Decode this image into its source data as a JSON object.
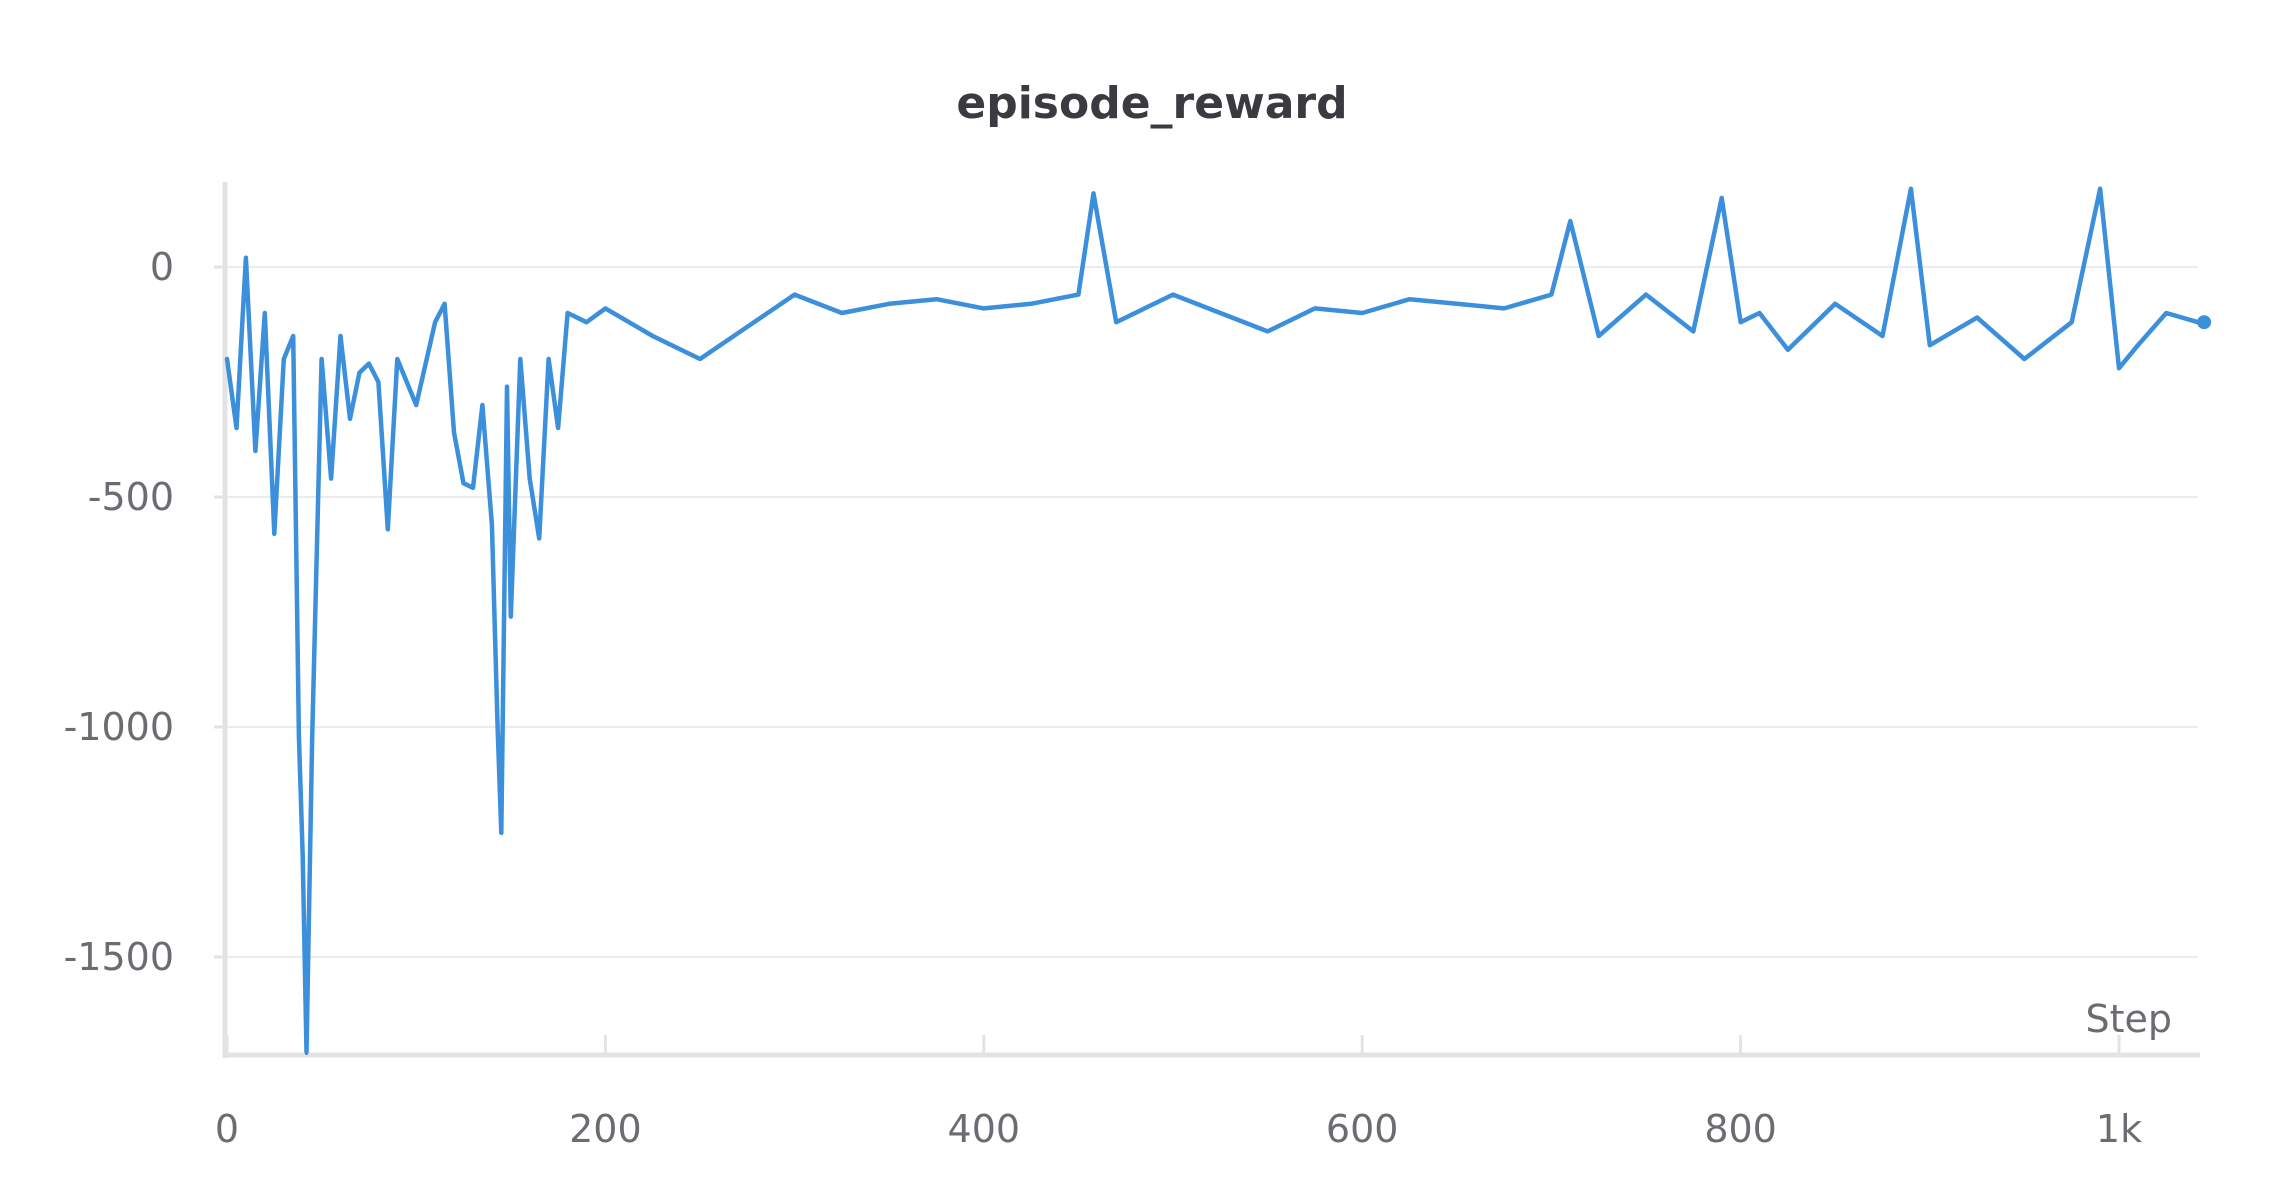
{
  "chart_data": {
    "type": "line",
    "title": "episode_reward",
    "xlabel": "Step",
    "ylabel": "",
    "xlim": [
      0,
      1045
    ],
    "ylim": [
      -1710,
      180
    ],
    "x_ticks": [
      {
        "value": 0,
        "label": "0"
      },
      {
        "value": 200,
        "label": "200"
      },
      {
        "value": 400,
        "label": "400"
      },
      {
        "value": 600,
        "label": "600"
      },
      {
        "value": 800,
        "label": "800"
      },
      {
        "value": 1000,
        "label": "1k"
      }
    ],
    "y_ticks": [
      {
        "value": 0,
        "label": "0"
      },
      {
        "value": -500,
        "label": "-500"
      },
      {
        "value": -1000,
        "label": "-1000"
      },
      {
        "value": -1500,
        "label": "-1500"
      }
    ],
    "grid": true,
    "series": [
      {
        "color": "#3b8fdb",
        "x": [
          0,
          5,
          10,
          15,
          20,
          25,
          30,
          35,
          38,
          40,
          42,
          45,
          50,
          55,
          60,
          65,
          70,
          75,
          80,
          85,
          90,
          100,
          110,
          115,
          120,
          125,
          130,
          135,
          140,
          143,
          145,
          148,
          150,
          155,
          160,
          165,
          170,
          175,
          180,
          190,
          200,
          225,
          250,
          275,
          300,
          325,
          350,
          375,
          400,
          425,
          450,
          458,
          470,
          500,
          525,
          550,
          575,
          600,
          625,
          650,
          675,
          700,
          710,
          725,
          750,
          775,
          790,
          800,
          810,
          825,
          850,
          875,
          890,
          900,
          925,
          950,
          975,
          990,
          1000,
          1010,
          1025,
          1045
        ],
        "y": [
          -200,
          -350,
          20,
          -400,
          -100,
          -580,
          -200,
          -150,
          -1020,
          -1280,
          -1710,
          -1030,
          -200,
          -460,
          -150,
          -330,
          -230,
          -210,
          -250,
          -570,
          -200,
          -300,
          -120,
          -80,
          -360,
          -470,
          -480,
          -300,
          -560,
          -1000,
          -1230,
          -260,
          -760,
          -200,
          -460,
          -590,
          -200,
          -350,
          -100,
          -120,
          -90,
          -150,
          -200,
          -130,
          -60,
          -100,
          -80,
          -70,
          -90,
          -80,
          -60,
          160,
          -120,
          -60,
          -100,
          -140,
          -90,
          -100,
          -70,
          -80,
          -90,
          -60,
          100,
          -150,
          -60,
          -140,
          150,
          -120,
          -100,
          -180,
          -80,
          -150,
          170,
          -170,
          -110,
          -200,
          -120,
          170,
          -220,
          -170,
          -100,
          -120
        ]
      }
    ]
  }
}
